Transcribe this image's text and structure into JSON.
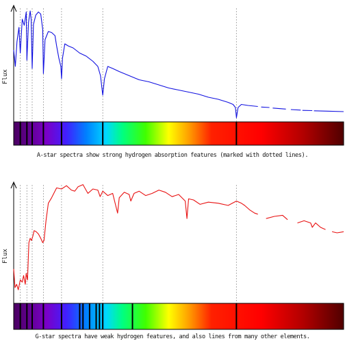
{
  "chart_data": [
    {
      "type": "line",
      "ylabel": "Flux",
      "caption": "A-star spectra show strong hydrogen absorption features (marked with dotted lines).",
      "series_color": "#1010e0",
      "x_range": [
        0,
        1
      ],
      "y_range": [
        0,
        1
      ],
      "line_markers": [
        0.02,
        0.04,
        0.056,
        0.09,
        0.145,
        0.27,
        0.675
      ],
      "series": [
        {
          "x": [
            0.0,
            0.005,
            0.01,
            0.016,
            0.02,
            0.026,
            0.032,
            0.038,
            0.04,
            0.045,
            0.05,
            0.053,
            0.056,
            0.06,
            0.067,
            0.075,
            0.082,
            0.088,
            0.09,
            0.095,
            0.1,
            0.105,
            0.115,
            0.125,
            0.13,
            0.137,
            0.143,
            0.145,
            0.148,
            0.155,
            0.165,
            0.18,
            0.2,
            0.22,
            0.24,
            0.255,
            0.263,
            0.27,
            0.275,
            0.285,
            0.3,
            0.32,
            0.35,
            0.38,
            0.41,
            0.44,
            0.47,
            0.5,
            0.53,
            0.56,
            0.59,
            0.62,
            0.65,
            0.665,
            0.672,
            0.675,
            0.68,
            0.69,
            0.71,
            0.74
          ],
          "y": [
            0.58,
            0.42,
            0.66,
            0.8,
            0.55,
            0.88,
            0.82,
            0.95,
            0.48,
            0.85,
            0.96,
            0.88,
            0.4,
            0.83,
            0.92,
            0.95,
            0.93,
            0.78,
            0.35,
            0.68,
            0.72,
            0.76,
            0.75,
            0.72,
            0.62,
            0.5,
            0.42,
            0.3,
            0.5,
            0.64,
            0.62,
            0.6,
            0.55,
            0.52,
            0.47,
            0.42,
            0.33,
            0.14,
            0.3,
            0.42,
            0.4,
            0.37,
            0.33,
            0.29,
            0.27,
            0.24,
            0.21,
            0.19,
            0.17,
            0.15,
            0.12,
            0.1,
            0.07,
            0.05,
            0.02,
            -0.08,
            0.02,
            0.05,
            0.04,
            0.03
          ]
        },
        {
          "x": [
            0.75,
            0.775
          ],
          "y": [
            0.025,
            0.02
          ]
        },
        {
          "x": [
            0.785,
            0.825
          ],
          "y": [
            0.015,
            0.005
          ]
        },
        {
          "x": [
            0.84,
            0.87
          ],
          "y": [
            0.0,
            -0.005
          ]
        },
        {
          "x": [
            0.875,
            0.905
          ],
          "y": [
            -0.008,
            -0.01
          ]
        },
        {
          "x": [
            0.91,
            0.95,
            1.0
          ],
          "y": [
            -0.012,
            -0.015,
            -0.02
          ]
        }
      ],
      "band_lines": [
        0.02,
        0.04,
        0.056,
        0.09,
        0.145,
        0.27,
        0.675
      ]
    },
    {
      "type": "line",
      "ylabel": "Flux",
      "caption": "G-star spectra have weak hydrogen features, and also lines from many other elements.",
      "series_color": "#e81010",
      "x_range": [
        0,
        1
      ],
      "y_range": [
        0,
        1
      ],
      "line_markers": [
        0.02,
        0.04,
        0.056,
        0.09,
        0.145,
        0.27,
        0.675
      ],
      "series": [
        {
          "x": [
            0.0,
            0.004,
            0.009,
            0.014,
            0.02,
            0.026,
            0.03,
            0.035,
            0.038,
            0.042,
            0.046,
            0.05,
            0.054,
            0.058,
            0.062,
            0.068,
            0.075,
            0.082,
            0.088,
            0.092,
            0.098,
            0.105,
            0.115,
            0.13,
            0.145,
            0.16,
            0.175,
            0.185,
            0.195,
            0.21,
            0.225,
            0.24,
            0.255,
            0.262,
            0.27,
            0.285,
            0.3,
            0.315,
            0.32,
            0.335,
            0.35,
            0.355,
            0.365,
            0.38,
            0.4,
            0.42,
            0.44,
            0.46,
            0.48,
            0.5,
            0.52,
            0.525,
            0.53,
            0.545,
            0.565,
            0.59,
            0.62,
            0.65,
            0.675,
            0.69,
            0.7,
            0.715,
            0.73,
            0.74
          ],
          "y": [
            0.22,
            0.05,
            0.08,
            0.03,
            0.12,
            0.1,
            0.16,
            0.08,
            0.18,
            0.12,
            0.46,
            0.5,
            0.48,
            0.52,
            0.57,
            0.56,
            0.54,
            0.5,
            0.46,
            0.48,
            0.66,
            0.82,
            0.87,
            0.96,
            0.95,
            0.98,
            0.94,
            0.93,
            0.97,
            0.99,
            0.91,
            0.95,
            0.94,
            0.88,
            0.93,
            0.89,
            0.91,
            0.73,
            0.87,
            0.92,
            0.9,
            0.84,
            0.91,
            0.93,
            0.89,
            0.91,
            0.94,
            0.92,
            0.88,
            0.9,
            0.84,
            0.68,
            0.86,
            0.85,
            0.81,
            0.83,
            0.82,
            0.8,
            0.84,
            0.82,
            0.8,
            0.76,
            0.73,
            0.72
          ]
        },
        {
          "x": [
            0.765,
            0.79,
            0.815,
            0.83
          ],
          "y": [
            0.68,
            0.7,
            0.71,
            0.67
          ]
        },
        {
          "x": [
            0.86,
            0.88,
            0.9,
            0.905,
            0.915,
            0.93,
            0.945
          ],
          "y": [
            0.64,
            0.66,
            0.64,
            0.6,
            0.64,
            0.6,
            0.58
          ]
        },
        {
          "x": [
            0.965,
            0.98,
            1.0
          ],
          "y": [
            0.56,
            0.55,
            0.56
          ]
        }
      ],
      "band_lines": [
        0.02,
        0.04,
        0.056,
        0.09,
        0.145,
        0.27,
        0.675,
        0.2,
        0.21,
        0.23,
        0.25,
        0.26,
        0.36
      ]
    }
  ]
}
